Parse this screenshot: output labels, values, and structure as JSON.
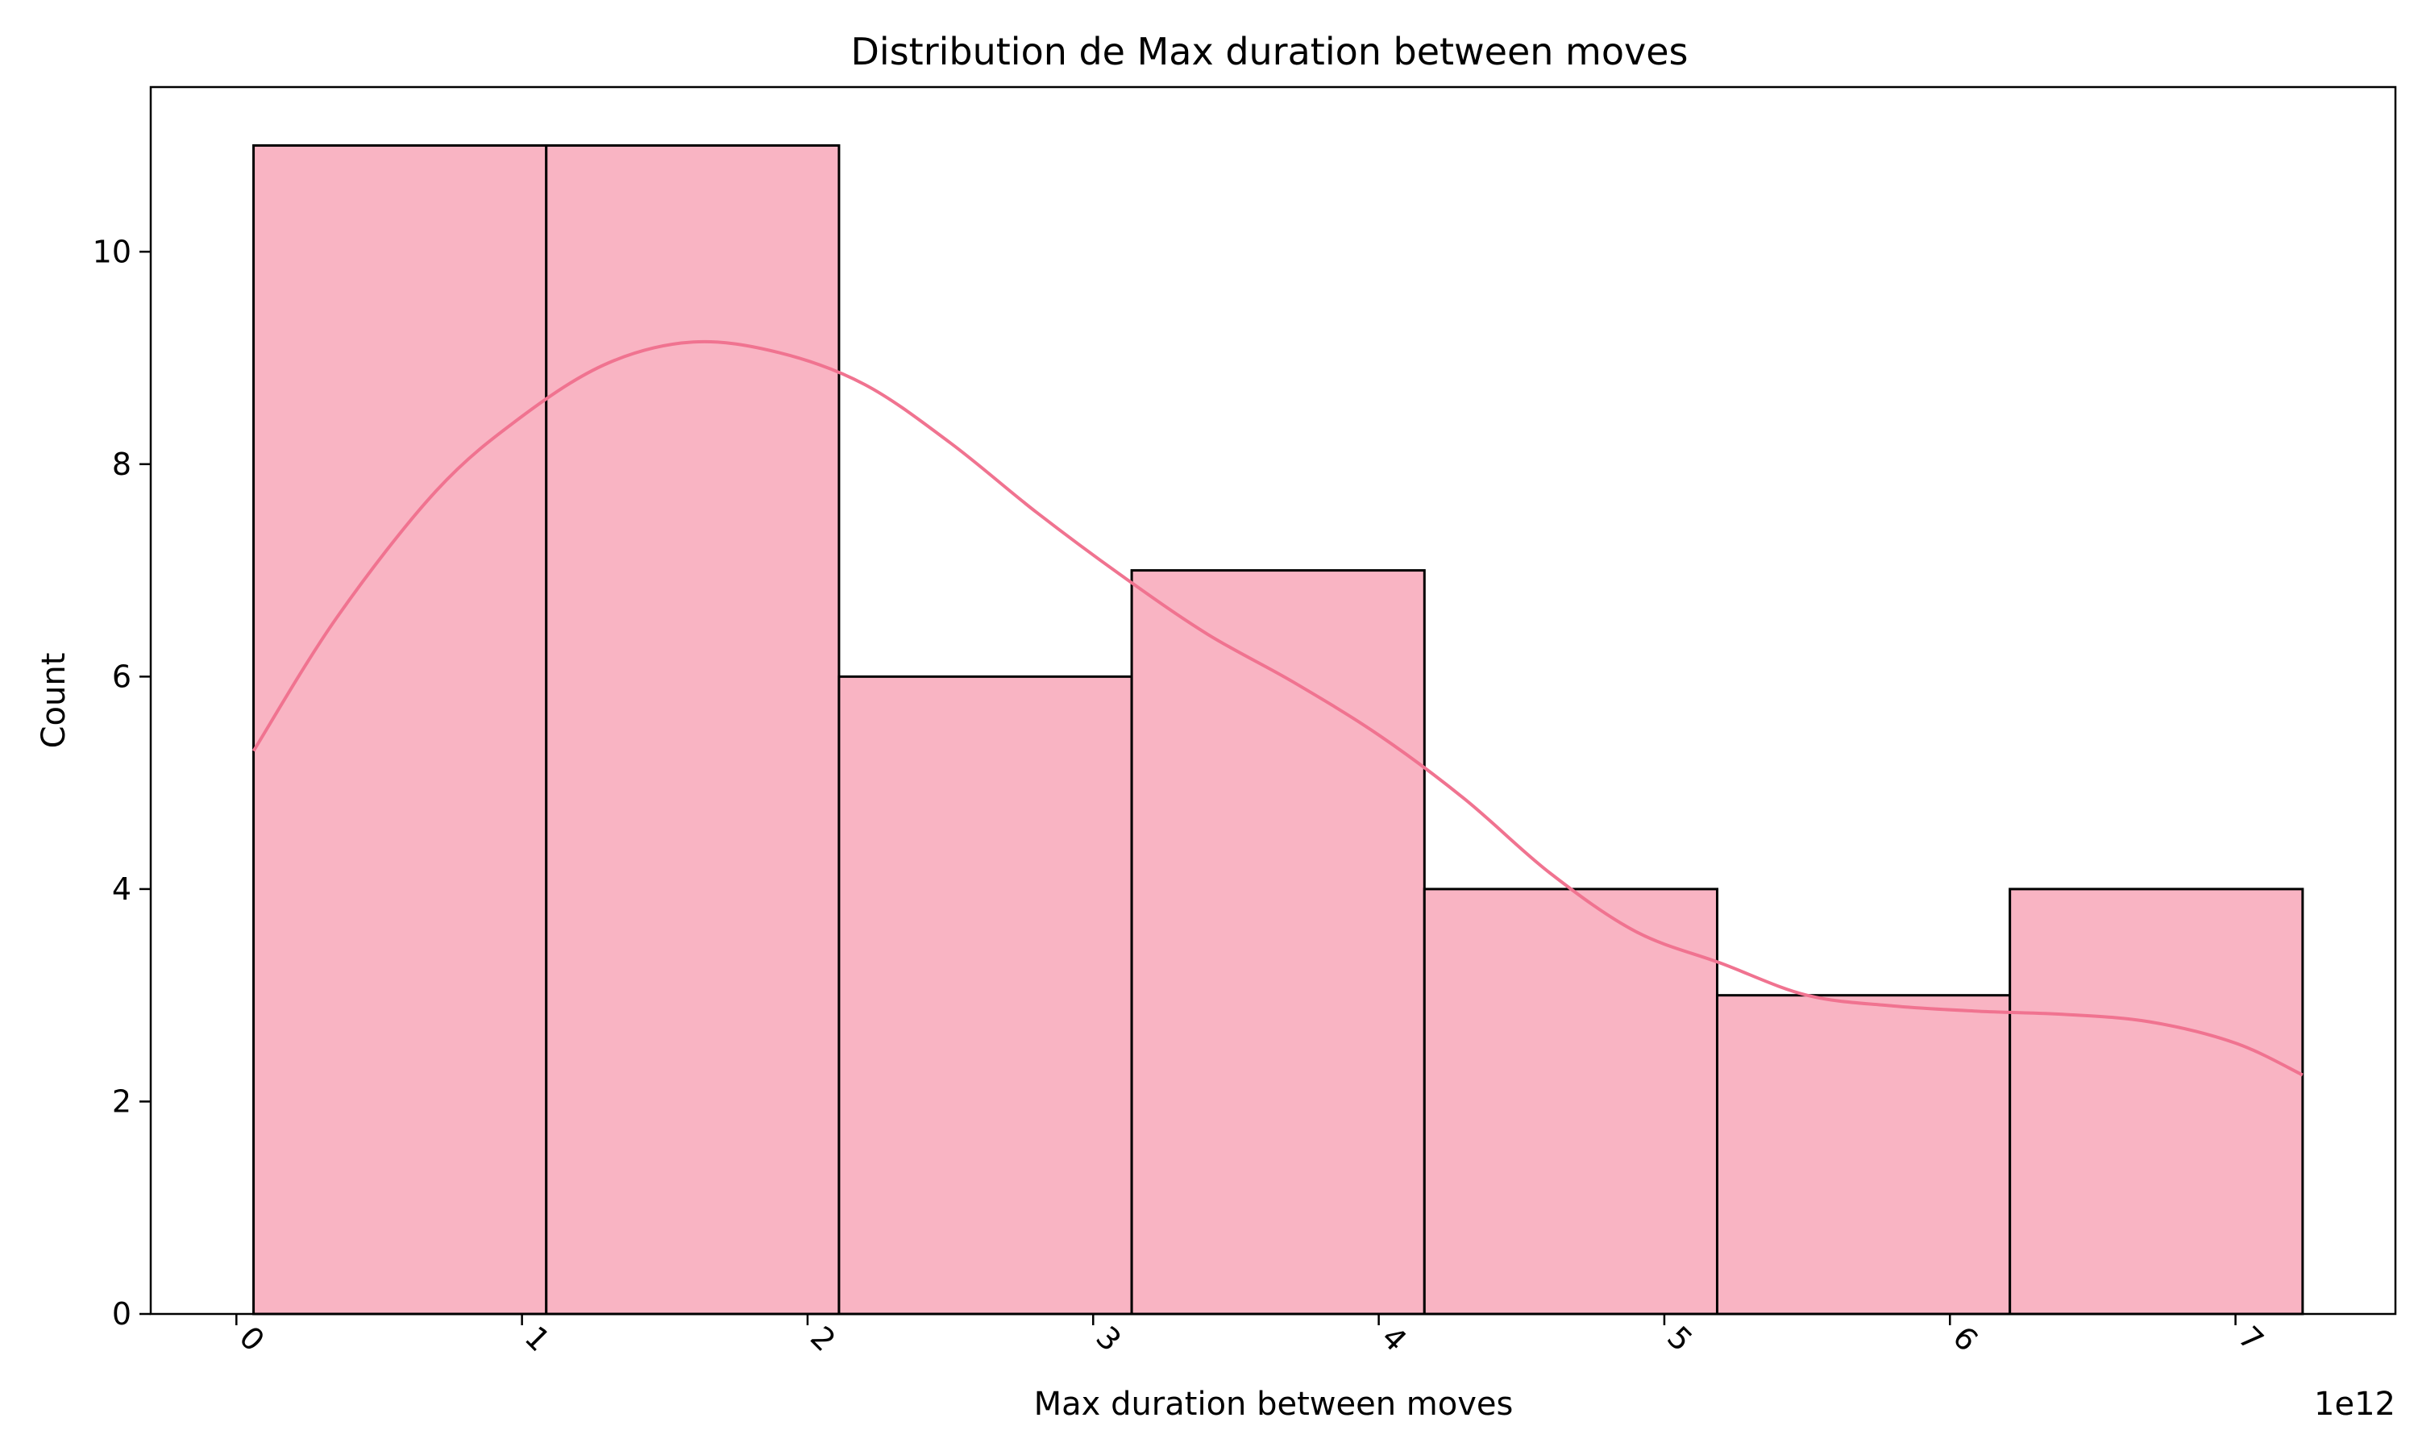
{
  "chart_data": {
    "type": "bar",
    "title": "Distribution de Max duration between moves",
    "xlabel": "Max duration between moves",
    "ylabel": "Count",
    "x_offset_label": "1e12",
    "xlim": [
      -0.3,
      7.56
    ],
    "ylim": [
      0,
      11.55
    ],
    "x_ticks": [
      0,
      1,
      2,
      3,
      4,
      5,
      6,
      7
    ],
    "x_tick_labels": [
      "0",
      "1",
      "2",
      "3",
      "4",
      "5",
      "6",
      "7"
    ],
    "y_ticks": [
      0,
      2,
      4,
      6,
      8,
      10
    ],
    "y_tick_labels": [
      "0",
      "2",
      "4",
      "6",
      "8",
      "10"
    ],
    "x_tick_rotation_deg": 45,
    "grid": false,
    "bins": [
      {
        "x0": 0.06,
        "x1": 1.085,
        "count": 11
      },
      {
        "x0": 1.085,
        "x1": 2.11,
        "count": 11
      },
      {
        "x0": 2.11,
        "x1": 3.135,
        "count": 6
      },
      {
        "x0": 3.135,
        "x1": 4.16,
        "count": 7
      },
      {
        "x0": 4.16,
        "x1": 5.185,
        "count": 4
      },
      {
        "x0": 5.185,
        "x1": 6.21,
        "count": 3
      },
      {
        "x0": 6.21,
        "x1": 7.235,
        "count": 4
      }
    ],
    "kde": {
      "x": [
        0.06,
        0.35,
        0.7,
        1.0,
        1.3,
        1.6,
        1.9,
        2.2,
        2.5,
        2.8,
        3.1,
        3.4,
        3.7,
        4.0,
        4.3,
        4.6,
        4.9,
        5.2,
        5.5,
        5.8,
        6.1,
        6.4,
        6.7,
        7.0,
        7.235
      ],
      "y": [
        5.3,
        6.55,
        7.75,
        8.45,
        8.95,
        9.15,
        9.05,
        8.75,
        8.2,
        7.55,
        6.95,
        6.4,
        5.95,
        5.45,
        4.85,
        4.15,
        3.6,
        3.3,
        3.0,
        2.9,
        2.85,
        2.82,
        2.75,
        2.55,
        2.25
      ]
    },
    "colors": {
      "bar_fill": "#f9b4c3",
      "bar_edge": "#000000",
      "kde_line": "#f07390"
    }
  }
}
